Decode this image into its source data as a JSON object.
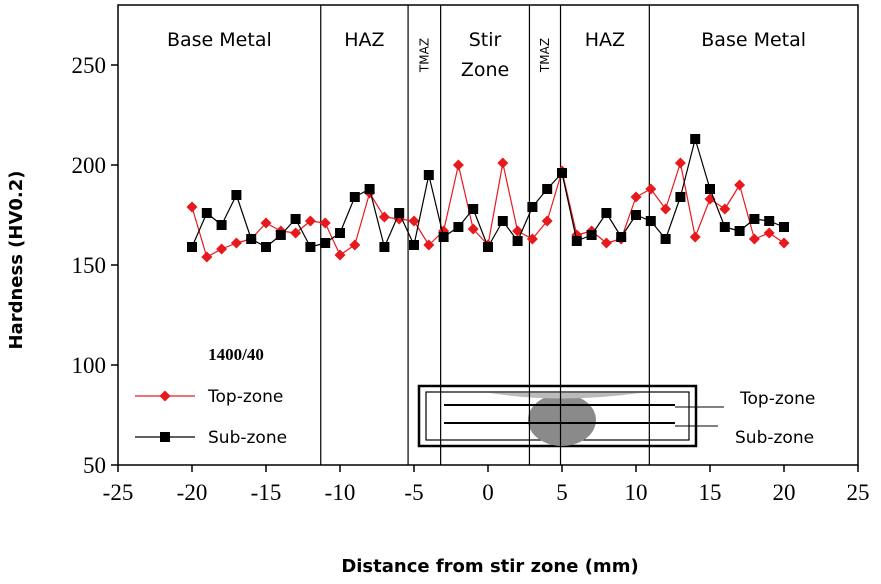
{
  "chart_data": {
    "type": "line",
    "x_label": "Distance from stir zone (mm)",
    "y_label": "Hardness (HV0.2)",
    "annotation": "1400/40",
    "xlim": [
      -25,
      25
    ],
    "xticks": [
      -25,
      -20,
      -15,
      -10,
      -5,
      0,
      5,
      10,
      15,
      20,
      25
    ],
    "ylim": [
      50,
      280
    ],
    "yticks": [
      50,
      100,
      150,
      200,
      250
    ],
    "legend": "lower left",
    "zone_boundaries": [
      -11.3,
      -5.4,
      -3.2,
      2.8,
      4.9,
      10.9
    ],
    "zones": [
      {
        "lines": [
          "Base Metal"
        ],
        "rotated": false
      },
      {
        "lines": [
          "HAZ"
        ],
        "rotated": false
      },
      {
        "lines": [
          "TMAZ"
        ],
        "rotated": true
      },
      {
        "lines": [
          "Stir",
          "Zone"
        ],
        "rotated": false
      },
      {
        "lines": [
          "TMAZ"
        ],
        "rotated": true
      },
      {
        "lines": [
          "HAZ"
        ],
        "rotated": false
      },
      {
        "lines": [
          "Base Metal"
        ],
        "rotated": false
      }
    ],
    "inset_labels": [
      "Top-zone",
      "Sub-zone"
    ],
    "x": [
      -20,
      -19,
      -18,
      -17,
      -16,
      -15,
      -14,
      -13,
      -12,
      -11,
      -10,
      -9,
      -8,
      -7,
      -6,
      -5,
      -4,
      -3,
      -2,
      -1,
      0,
      1,
      2,
      3,
      4,
      5,
      6,
      7,
      8,
      9,
      10,
      11,
      12,
      13,
      14,
      15,
      16,
      17,
      18,
      19,
      20
    ],
    "series": [
      {
        "name": "Top-zone",
        "color": "#e8191c",
        "marker": "diamond",
        "values": [
          179,
          154,
          158,
          161,
          163,
          171,
          167,
          166,
          172,
          171,
          155,
          160,
          186,
          174,
          173,
          172,
          160,
          167,
          200,
          168,
          160,
          201,
          167,
          163,
          172,
          197,
          165,
          167,
          161,
          163,
          184,
          188,
          178,
          201,
          164,
          183,
          178,
          190,
          163,
          166,
          161
        ]
      },
      {
        "name": "Sub-zone",
        "color": "#000000",
        "marker": "square",
        "values": [
          159,
          176,
          170,
          185,
          163,
          159,
          165,
          173,
          159,
          161,
          166,
          184,
          188,
          159,
          176,
          160,
          195,
          164,
          169,
          178,
          159,
          172,
          162,
          179,
          188,
          196,
          162,
          165,
          176,
          164,
          175,
          172,
          163,
          184,
          213,
          188,
          169,
          167,
          173,
          172,
          169
        ]
      }
    ]
  }
}
